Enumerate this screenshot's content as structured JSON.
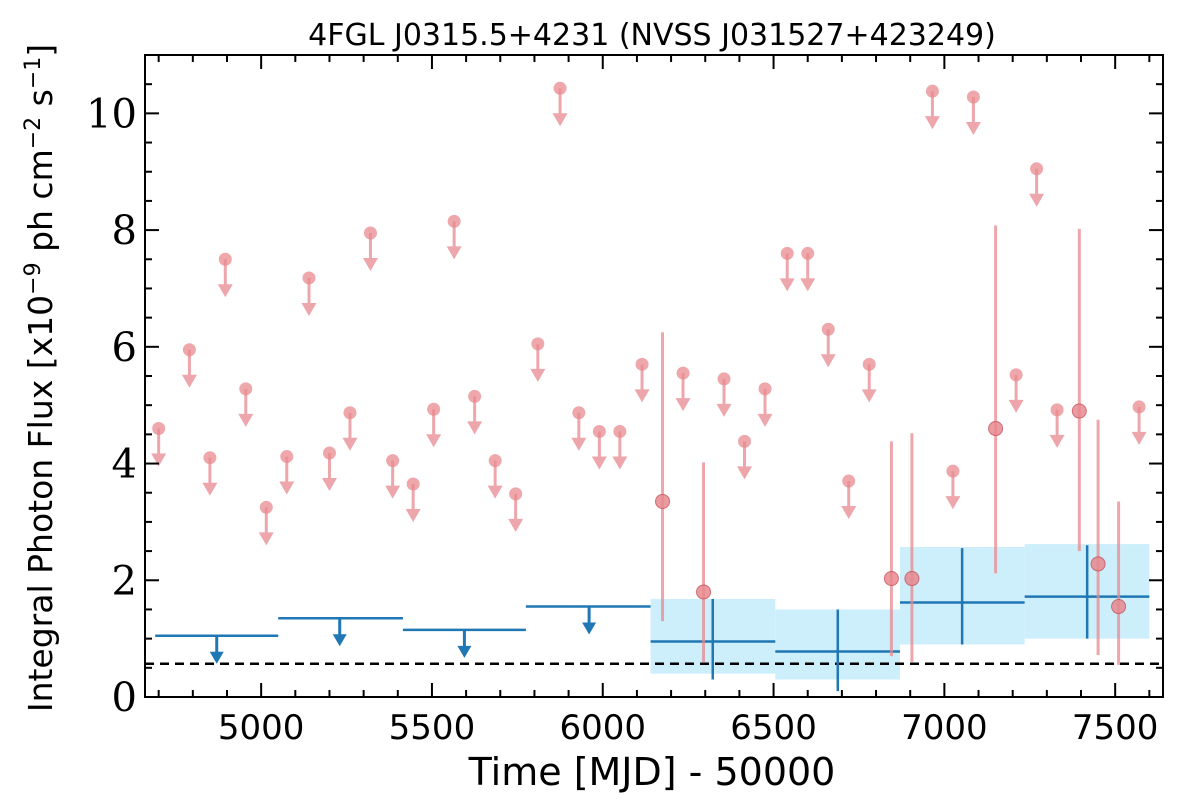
{
  "chart_data": {
    "type": "scatter",
    "title": "4FGL J0315.5+4231 (NVSS J031527+423249)",
    "xlabel": "Time [MJD] - 50000",
    "ylabel_parts": {
      "prefix": "Integral Photon Flux [x10",
      "exp1": "−9",
      "mid": " ph cm",
      "exp2": "−2",
      "mid2": " s",
      "exp3": "−1",
      "suffix": "]"
    },
    "xlim": [
      4660,
      7640
    ],
    "ylim": [
      0,
      11
    ],
    "xticks": [
      5000,
      5500,
      6000,
      6500,
      7000,
      7500
    ],
    "xtick_labels": [
      "5000",
      "5500",
      "6000",
      "6500",
      "7000",
      "7500"
    ],
    "yticks": [
      0,
      2,
      4,
      6,
      8,
      10
    ],
    "ytick_labels": [
      "0",
      "2",
      "4",
      "6",
      "8",
      "10"
    ],
    "colors": {
      "monthly": "#e8898f",
      "yearly": "#1f77b4",
      "band": "#cdeefb",
      "reference": "#000000"
    },
    "reference_line": 0.57,
    "monthly_upper_limits": [
      {
        "x": 4700,
        "y": 4.6
      },
      {
        "x": 4790,
        "y": 5.95
      },
      {
        "x": 4850,
        "y": 4.1
      },
      {
        "x": 4895,
        "y": 7.5
      },
      {
        "x": 4955,
        "y": 5.28
      },
      {
        "x": 5015,
        "y": 3.25
      },
      {
        "x": 5075,
        "y": 4.12
      },
      {
        "x": 5140,
        "y": 7.18
      },
      {
        "x": 5200,
        "y": 4.18
      },
      {
        "x": 5260,
        "y": 4.87
      },
      {
        "x": 5320,
        "y": 7.95
      },
      {
        "x": 5385,
        "y": 4.05
      },
      {
        "x": 5445,
        "y": 3.65
      },
      {
        "x": 5505,
        "y": 4.93
      },
      {
        "x": 5565,
        "y": 8.15
      },
      {
        "x": 5625,
        "y": 5.15
      },
      {
        "x": 5685,
        "y": 4.05
      },
      {
        "x": 5745,
        "y": 3.48
      },
      {
        "x": 5810,
        "y": 6.05
      },
      {
        "x": 5875,
        "y": 10.43
      },
      {
        "x": 5930,
        "y": 4.87
      },
      {
        "x": 5990,
        "y": 4.55
      },
      {
        "x": 6050,
        "y": 4.55
      },
      {
        "x": 6115,
        "y": 5.7
      },
      {
        "x": 6235,
        "y": 5.55
      },
      {
        "x": 6355,
        "y": 5.45
      },
      {
        "x": 6415,
        "y": 4.38
      },
      {
        "x": 6475,
        "y": 5.28
      },
      {
        "x": 6540,
        "y": 7.6
      },
      {
        "x": 6600,
        "y": 7.6
      },
      {
        "x": 6660,
        "y": 6.3
      },
      {
        "x": 6720,
        "y": 3.7
      },
      {
        "x": 6780,
        "y": 5.7
      },
      {
        "x": 6965,
        "y": 10.38
      },
      {
        "x": 7025,
        "y": 3.87
      },
      {
        "x": 7085,
        "y": 10.28
      },
      {
        "x": 7210,
        "y": 5.52
      },
      {
        "x": 7270,
        "y": 9.05
      },
      {
        "x": 7330,
        "y": 4.92
      },
      {
        "x": 7570,
        "y": 4.97
      }
    ],
    "monthly_detections": [
      {
        "x": 6175,
        "y": 3.35,
        "ylo": 1.3,
        "yhi": 6.25
      },
      {
        "x": 6295,
        "y": 1.8,
        "ylo": 0.6,
        "yhi": 4.02
      },
      {
        "x": 6845,
        "y": 2.03,
        "ylo": 0.7,
        "yhi": 4.38
      },
      {
        "x": 6905,
        "y": 2.03,
        "ylo": 0.6,
        "yhi": 4.52
      },
      {
        "x": 7150,
        "y": 4.6,
        "ylo": 2.12,
        "yhi": 8.08
      },
      {
        "x": 7395,
        "y": 4.9,
        "ylo": 2.5,
        "yhi": 8.02
      },
      {
        "x": 7450,
        "y": 2.28,
        "ylo": 0.72,
        "yhi": 4.75
      },
      {
        "x": 7510,
        "y": 1.55,
        "ylo": 0.55,
        "yhi": 3.35
      }
    ],
    "yearly_upper_limits": [
      {
        "x0": 4690,
        "x1": 5050,
        "x": 4870,
        "y": 1.05
      },
      {
        "x0": 5050,
        "x1": 5415,
        "x": 5230,
        "y": 1.35
      },
      {
        "x0": 5415,
        "x1": 5775,
        "x": 5595,
        "y": 1.15
      },
      {
        "x0": 5775,
        "x1": 6140,
        "x": 5960,
        "y": 1.55
      }
    ],
    "yearly_detections": [
      {
        "x0": 6140,
        "x1": 6505,
        "x": 6322,
        "y": 0.95,
        "ylo": 0.3,
        "yhi": 1.68,
        "band_lo": 0.4,
        "band_hi": 1.68
      },
      {
        "x0": 6505,
        "x1": 6870,
        "x": 6688,
        "y": 0.78,
        "ylo": 0.1,
        "yhi": 1.5,
        "band_lo": 0.3,
        "band_hi": 1.5
      },
      {
        "x0": 6870,
        "x1": 7235,
        "x": 7052,
        "y": 1.62,
        "ylo": 0.9,
        "yhi": 2.55,
        "band_lo": 0.9,
        "band_hi": 2.57
      },
      {
        "x0": 7235,
        "x1": 7600,
        "x": 7418,
        "y": 1.72,
        "ylo": 1.0,
        "yhi": 2.6,
        "band_lo": 1.0,
        "band_hi": 2.62
      }
    ]
  }
}
